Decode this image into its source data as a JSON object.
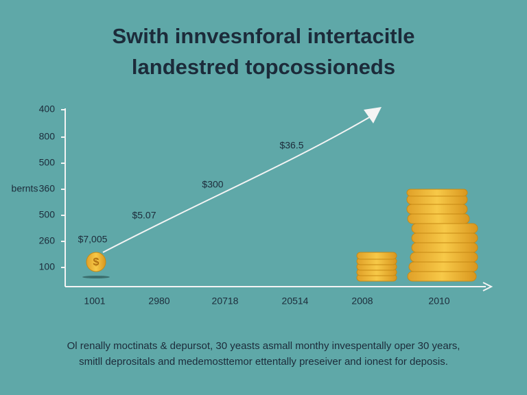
{
  "header": {
    "title_lines": [
      "Swith innvesnforal intertacitle",
      "landestred topcossioneds"
    ]
  },
  "axis": {
    "y_label": "bernts",
    "y_labels": [
      "400",
      "800",
      "500",
      "360",
      "500",
      "260",
      "100"
    ],
    "x_labels": [
      "1001",
      "2980",
      "20718",
      "20514",
      "2008",
      "2010"
    ]
  },
  "annotations": [
    "$7,005",
    "$5.07",
    "$300",
    "$36.5"
  ],
  "caption": [
    "Ol renally moctinats & depursot, 30 yeasts asmall monthy invespentally oper 30 years,",
    "smitll deprositals and medemosttemor ettentally preseiver and ionest for deposis."
  ]
}
